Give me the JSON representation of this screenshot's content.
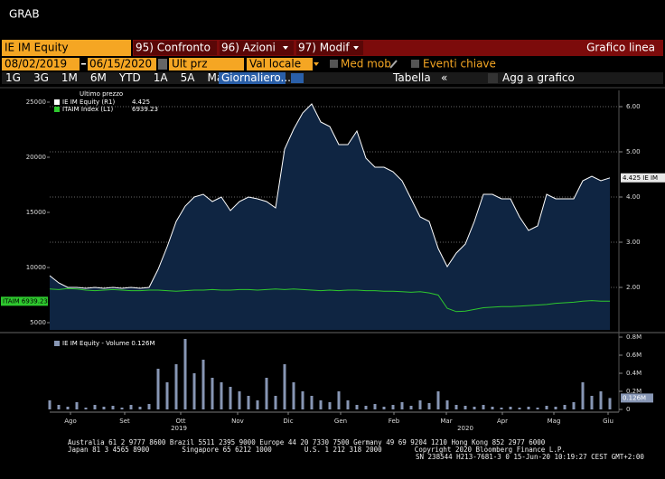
{
  "window_title": "GRAB",
  "toolbar": {
    "security": "IE IM Equity",
    "menus": [
      "95) Confronto",
      "96) Azioni",
      "97) Modif"
    ],
    "view": "Grafico linea",
    "start_date": "08/02/2019",
    "end_date": "06/15/2020",
    "field": "Ult prz",
    "currency": "Val locale",
    "checks": [
      "Med mob",
      "Eventi chiave"
    ],
    "periods": [
      "1G",
      "3G",
      "1M",
      "6M",
      "YTD",
      "1A",
      "5A",
      "Mass"
    ],
    "frequency": "Giornaliero...",
    "table": "Tabella",
    "collapse": "«",
    "add": "Agg a grafico"
  },
  "chart_data": [
    {
      "type": "line",
      "legend_title": "Ultimo prezzo",
      "xlim": [
        0,
        63
      ],
      "ylim": [
        4344,
        26066
      ],
      "yticks": [
        5000,
        10000,
        15000,
        20000,
        25000
      ],
      "y2lim": [
        1.06,
        6.36
      ],
      "y2ticks": [
        {
          "value": 2,
          "label": "2.00"
        },
        {
          "value": 3,
          "label": "3.00"
        },
        {
          "value": 4,
          "label": "4.00"
        },
        {
          "value": 5,
          "label": "5.00"
        },
        {
          "value": 6,
          "label": "6.00"
        }
      ],
      "grid": true,
      "series": [
        {
          "name": "IE IM Equity (R1)",
          "axis": "y2",
          "color": "#ffffff",
          "fill": "#0f2542",
          "tag": "4.425 IE IM",
          "values": [
            2.26,
            2.1,
            2.0,
            2.0,
            1.98,
            2.0,
            1.98,
            2.0,
            1.98,
            2.0,
            1.98,
            2.0,
            2.4,
            2.9,
            3.46,
            3.8,
            4.0,
            4.06,
            3.9,
            4.0,
            3.7,
            3.9,
            4.0,
            3.96,
            3.9,
            3.76,
            5.06,
            5.5,
            5.86,
            6.06,
            5.66,
            5.56,
            5.16,
            5.16,
            5.46,
            4.86,
            4.66,
            4.66,
            4.56,
            4.36,
            3.96,
            3.56,
            3.46,
            2.86,
            2.46,
            2.76,
            2.96,
            3.46,
            4.06,
            4.06,
            3.96,
            3.96,
            3.56,
            3.26,
            3.36,
            4.06,
            3.96,
            3.96,
            3.96,
            4.36,
            4.46,
            4.36,
            4.425
          ]
        },
        {
          "name": "ITAIM Index (L1)",
          "axis": "y",
          "color": "#2ec82e",
          "tag": "ITAIM 6939.23",
          "values": [
            8050,
            8000,
            8100,
            8050,
            7950,
            7900,
            7950,
            8000,
            7950,
            7900,
            7900,
            7950,
            7950,
            7900,
            7850,
            7900,
            7950,
            7950,
            8000,
            7950,
            7950,
            8000,
            8000,
            7950,
            8000,
            8050,
            8000,
            8050,
            8000,
            7950,
            7900,
            7950,
            7900,
            7950,
            7950,
            7900,
            7900,
            7850,
            7850,
            7800,
            7750,
            7800,
            7700,
            7500,
            6300,
            6000,
            6050,
            6200,
            6350,
            6400,
            6450,
            6450,
            6500,
            6550,
            6600,
            6650,
            6750,
            6800,
            6850,
            6950,
            7000,
            6950,
            6939.23
          ]
        }
      ]
    },
    {
      "type": "bar",
      "xlim": [
        0,
        63
      ],
      "ylim": [
        -0.03,
        0.81
      ],
      "yticks": [
        {
          "value": 0,
          "label": "0"
        },
        {
          "value": 0.2,
          "label": "0.2M"
        },
        {
          "value": 0.4,
          "label": "0.4M"
        },
        {
          "value": 0.6,
          "label": "0.6M"
        },
        {
          "value": 0.8,
          "label": "0.8M"
        }
      ],
      "xticks": [
        {
          "value": 2.3,
          "label": "Ago"
        },
        {
          "value": 8.3,
          "label": "Set"
        },
        {
          "value": 14.5,
          "label": "Ott"
        },
        {
          "value": 20.8,
          "label": "Nov"
        },
        {
          "value": 26.4,
          "label": "Dic"
        },
        {
          "value": 32.2,
          "label": "Gen"
        },
        {
          "value": 38.1,
          "label": "Feb"
        },
        {
          "value": 43.9,
          "label": "Mar"
        },
        {
          "value": 50.1,
          "label": "Apr"
        },
        {
          "value": 55.8,
          "label": "Mag"
        },
        {
          "value": 61.8,
          "label": "Giu"
        }
      ],
      "year_labels": [
        {
          "value": 14.3,
          "label": "2019"
        },
        {
          "value": 46.0,
          "label": "2020"
        }
      ],
      "series": [
        {
          "name": "IE IM Equity - Volume 0.126M",
          "color": "#8796b4",
          "last_label": "0.126M",
          "values": [
            0.1,
            0.05,
            0.03,
            0.08,
            0.02,
            0.05,
            0.03,
            0.04,
            0.02,
            0.05,
            0.03,
            0.06,
            0.45,
            0.3,
            0.5,
            0.78,
            0.4,
            0.55,
            0.35,
            0.3,
            0.25,
            0.2,
            0.15,
            0.1,
            0.35,
            0.15,
            0.5,
            0.3,
            0.2,
            0.15,
            0.1,
            0.08,
            0.2,
            0.1,
            0.05,
            0.04,
            0.06,
            0.03,
            0.05,
            0.08,
            0.04,
            0.1,
            0.07,
            0.2,
            0.1,
            0.05,
            0.04,
            0.03,
            0.05,
            0.03,
            0.02,
            0.03,
            0.02,
            0.03,
            0.02,
            0.04,
            0.03,
            0.05,
            0.08,
            0.3,
            0.15,
            0.2,
            0.126
          ]
        }
      ]
    }
  ],
  "footer": [
    "Australia 61 2 9777 8600 Brazil 5511 2395 9000 Europe 44 20 7330 7500 Germany 49 69 9204 1210 Hong Kong 852 2977 6000",
    "Japan 81 3 4565 8900        Singapore 65 6212 1000        U.S. 1 212 318 2000        Copyright 2020 Bloomberg Finance L.P.",
    "SN 238544 H213-7681-3 0 15-Jun-20 10:19:27 CEST GMT+2:00"
  ]
}
